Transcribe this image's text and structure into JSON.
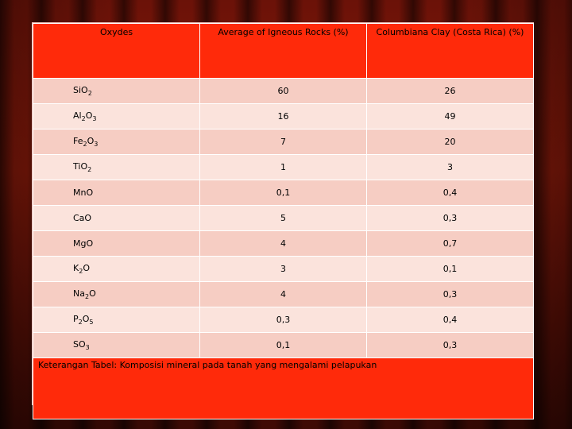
{
  "table": {
    "headers": [
      "Oxydes",
      "Average of Igneous Rocks (%)",
      "Columbiana Clay (Costa Rica) (%)"
    ],
    "rows": [
      {
        "oxide_base": "SiO",
        "oxide_parts": [
          {
            "t": "Si",
            "s": ""
          },
          {
            "t": "O",
            "s": "2"
          }
        ],
        "igneous": "60",
        "clay": "26"
      },
      {
        "oxide_parts": [
          {
            "t": "Al",
            "s": "2"
          },
          {
            "t": "O",
            "s": "3"
          }
        ],
        "igneous": "16",
        "clay": "49"
      },
      {
        "oxide_parts": [
          {
            "t": "Fe",
            "s": "2"
          },
          {
            "t": "O",
            "s": "3"
          }
        ],
        "igneous": "7",
        "clay": "20"
      },
      {
        "oxide_parts": [
          {
            "t": "Ti",
            "s": ""
          },
          {
            "t": "O",
            "s": "2"
          }
        ],
        "igneous": "1",
        "clay": "3"
      },
      {
        "oxide_parts": [
          {
            "t": "MnO",
            "s": ""
          }
        ],
        "igneous": "0,1",
        "clay": "0,4"
      },
      {
        "oxide_parts": [
          {
            "t": "CaO",
            "s": ""
          }
        ],
        "igneous": "5",
        "clay": "0,3"
      },
      {
        "oxide_parts": [
          {
            "t": "MgO",
            "s": ""
          }
        ],
        "igneous": "4",
        "clay": "0,7"
      },
      {
        "oxide_parts": [
          {
            "t": "K",
            "s": "2"
          },
          {
            "t": "O",
            "s": ""
          }
        ],
        "igneous": "3",
        "clay": "0,1"
      },
      {
        "oxide_parts": [
          {
            "t": "Na",
            "s": "2"
          },
          {
            "t": "O",
            "s": ""
          }
        ],
        "igneous": "4",
        "clay": "0,3"
      },
      {
        "oxide_parts": [
          {
            "t": "P",
            "s": "2"
          },
          {
            "t": "O",
            "s": "5"
          }
        ],
        "igneous": "0,3",
        "clay": "0,4"
      },
      {
        "oxide_parts": [
          {
            "t": "SO",
            "s": "3"
          }
        ],
        "igneous": "0,1",
        "clay": "0,3"
      }
    ],
    "caption": "Keterangan Tabel: Komposisi mineral pada tanah yang mengalami pelapukan"
  },
  "colors": {
    "header_bg": "#ff2a0a",
    "row_light": "#fbe3dc",
    "row_dark": "#f6cdc3",
    "curtain": "#8c1a0a"
  }
}
